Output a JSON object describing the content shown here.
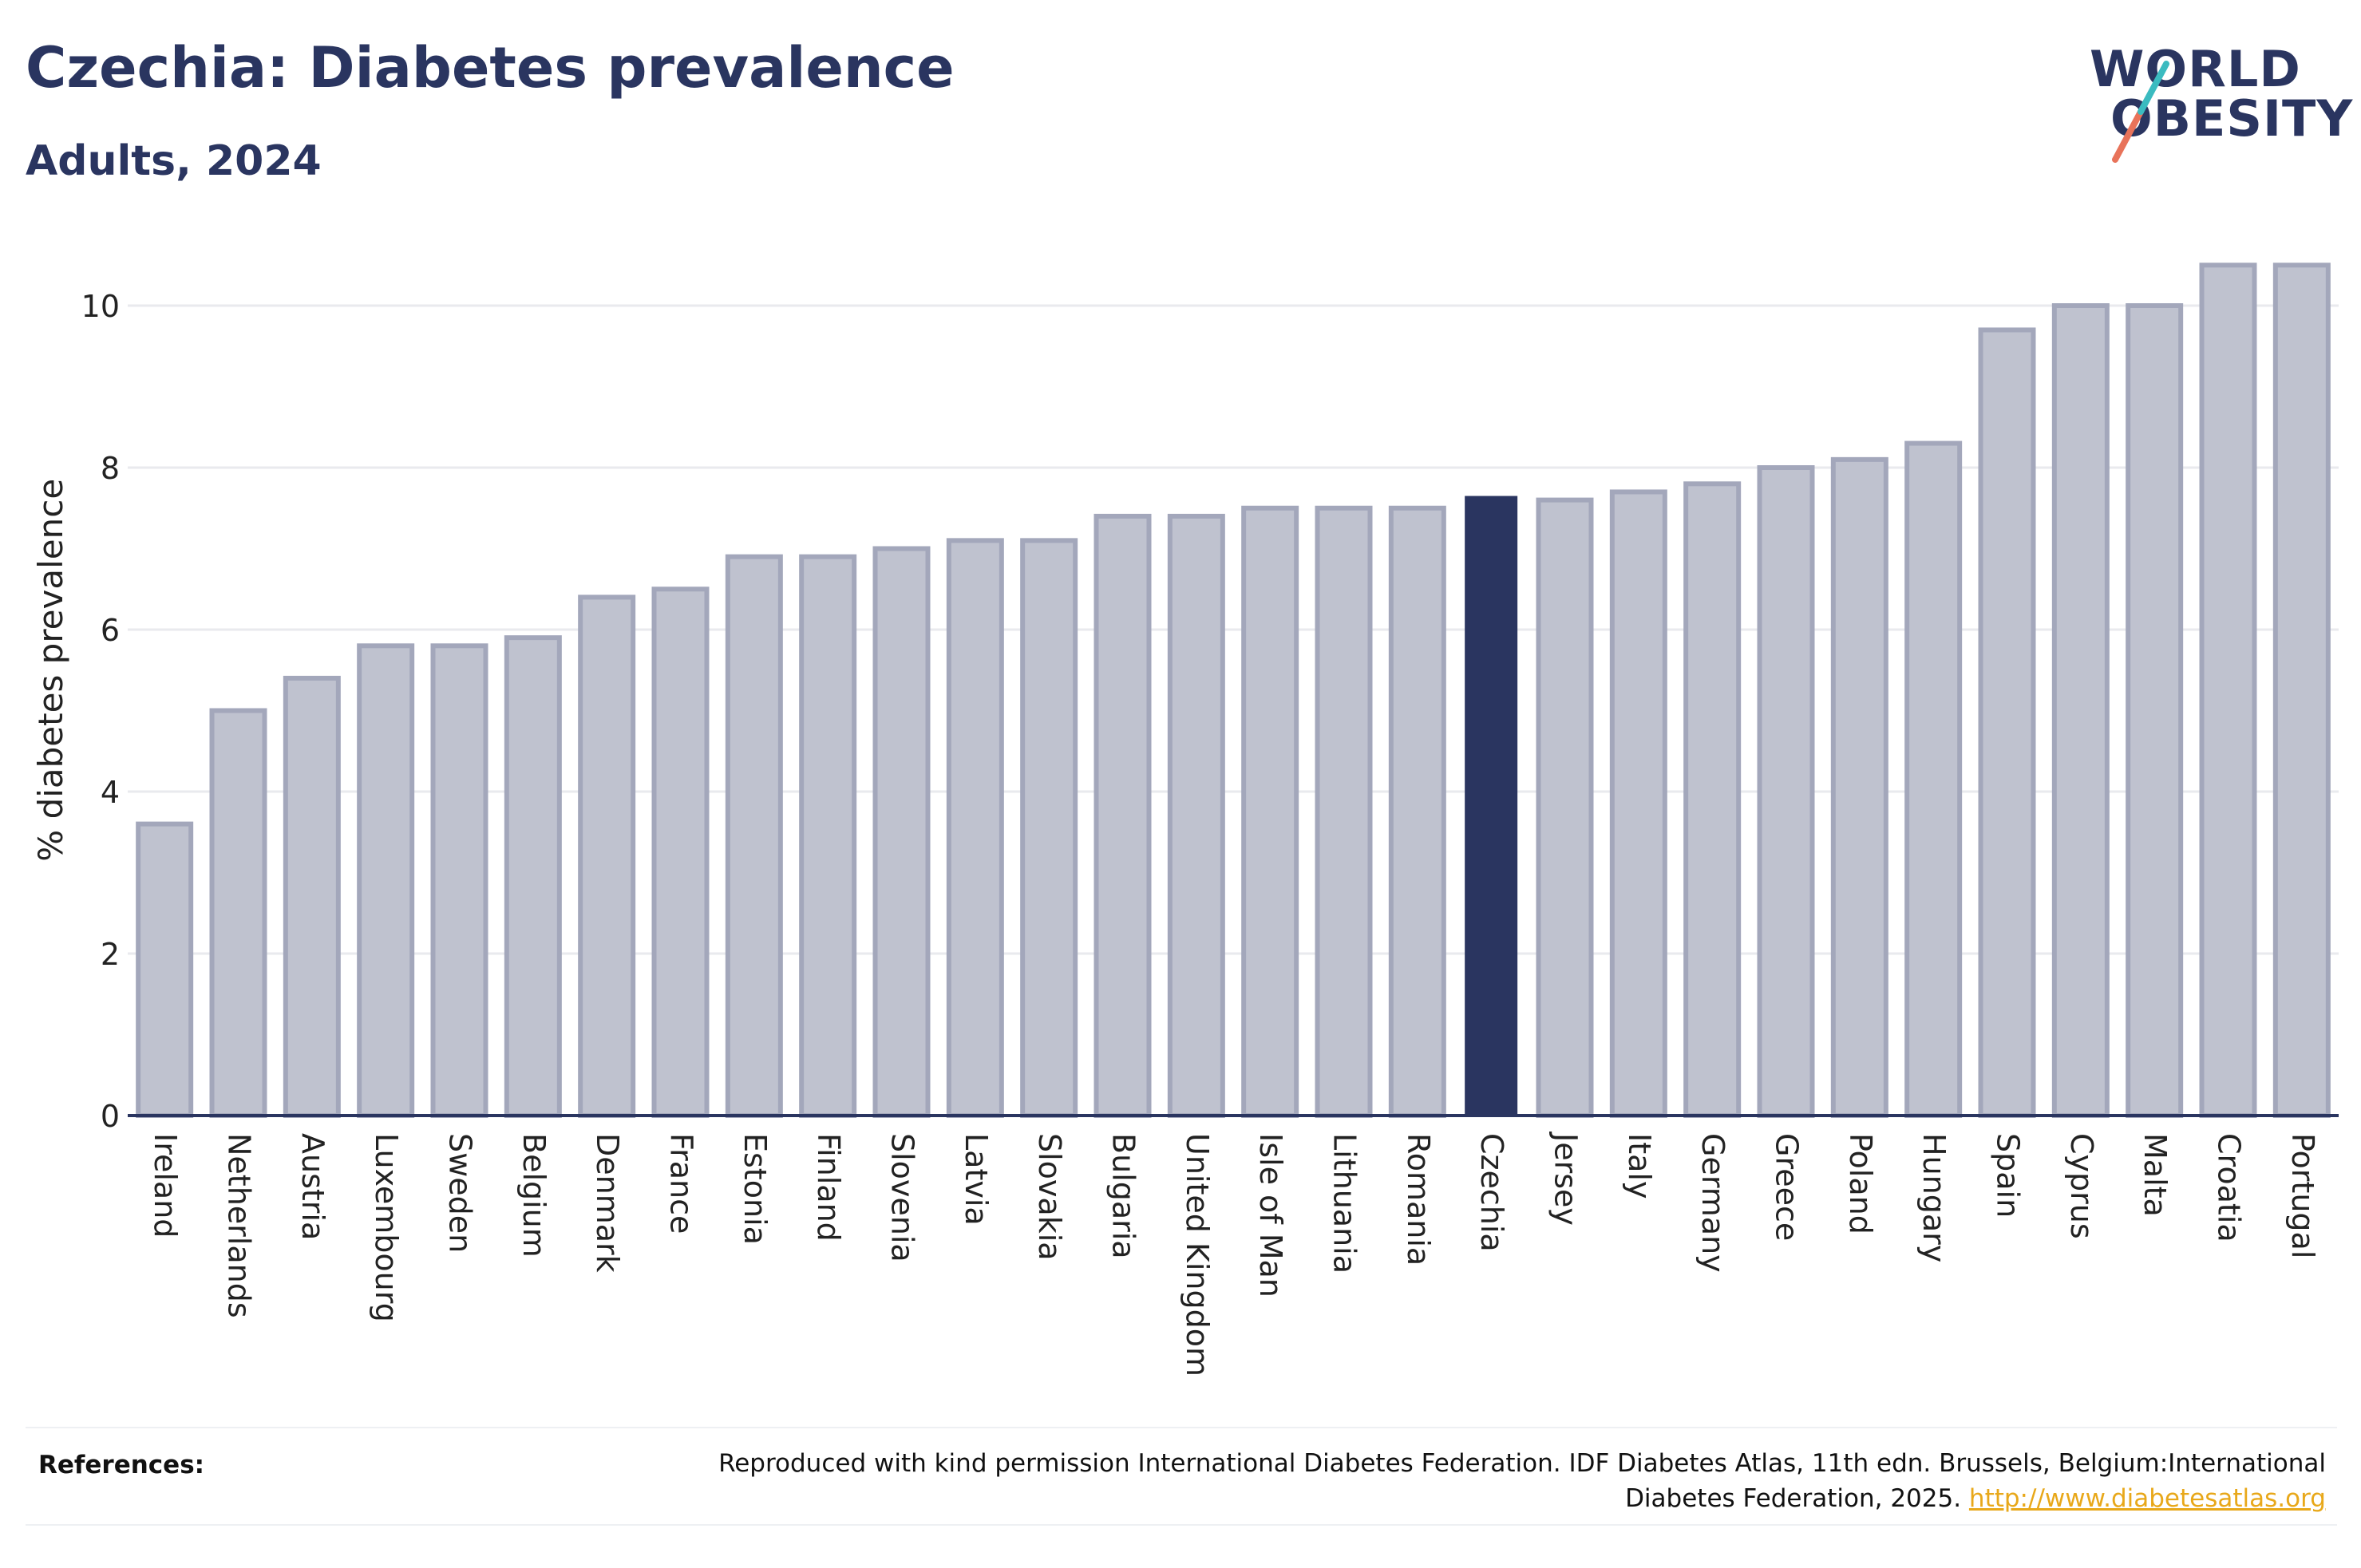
{
  "header": {
    "title": "Czechia: Diabetes prevalence",
    "subtitle": "Adults, 2024"
  },
  "logo": {
    "line1": "WORLD",
    "line2": "OBESITY"
  },
  "references": {
    "label": "References:",
    "text": "Reproduced with kind permission International Diabetes Federation. IDF Diabetes Atlas, 11th edn. Brussels, Belgium:International Diabetes Federation, 2025.",
    "link": "http://www.diabetesatlas.org"
  },
  "colors": {
    "bar": "#bfc2cf",
    "bar_border": "#a3a7bb",
    "highlight": "#2a3560",
    "grid": "#e9eaee",
    "axis": "#2a3560"
  },
  "chart_data": {
    "type": "bar",
    "ylabel": "% diabetes prevalence",
    "xlabel": "",
    "ylim": [
      0,
      11
    ],
    "yticks": [
      0,
      2,
      4,
      6,
      8,
      10
    ],
    "grid": true,
    "highlight": "Czechia",
    "categories": [
      "Ireland",
      "Netherlands",
      "Austria",
      "Luxembourg",
      "Sweden",
      "Belgium",
      "Denmark",
      "France",
      "Estonia",
      "Finland",
      "Slovenia",
      "Latvia",
      "Slovakia",
      "Bulgaria",
      "United Kingdom",
      "Isle of Man",
      "Lithuania",
      "Romania",
      "Czechia",
      "Jersey",
      "Italy",
      "Germany",
      "Greece",
      "Poland",
      "Hungary",
      "Spain",
      "Cyprus",
      "Malta",
      "Croatia",
      "Portugal"
    ],
    "values": [
      3.6,
      5.0,
      5.4,
      5.8,
      5.8,
      5.9,
      6.4,
      6.5,
      6.9,
      6.9,
      7.0,
      7.1,
      7.1,
      7.4,
      7.4,
      7.5,
      7.5,
      7.5,
      7.65,
      7.6,
      7.7,
      7.8,
      8.0,
      8.1,
      8.3,
      9.7,
      10.0,
      10.0,
      10.5,
      10.5
    ]
  }
}
